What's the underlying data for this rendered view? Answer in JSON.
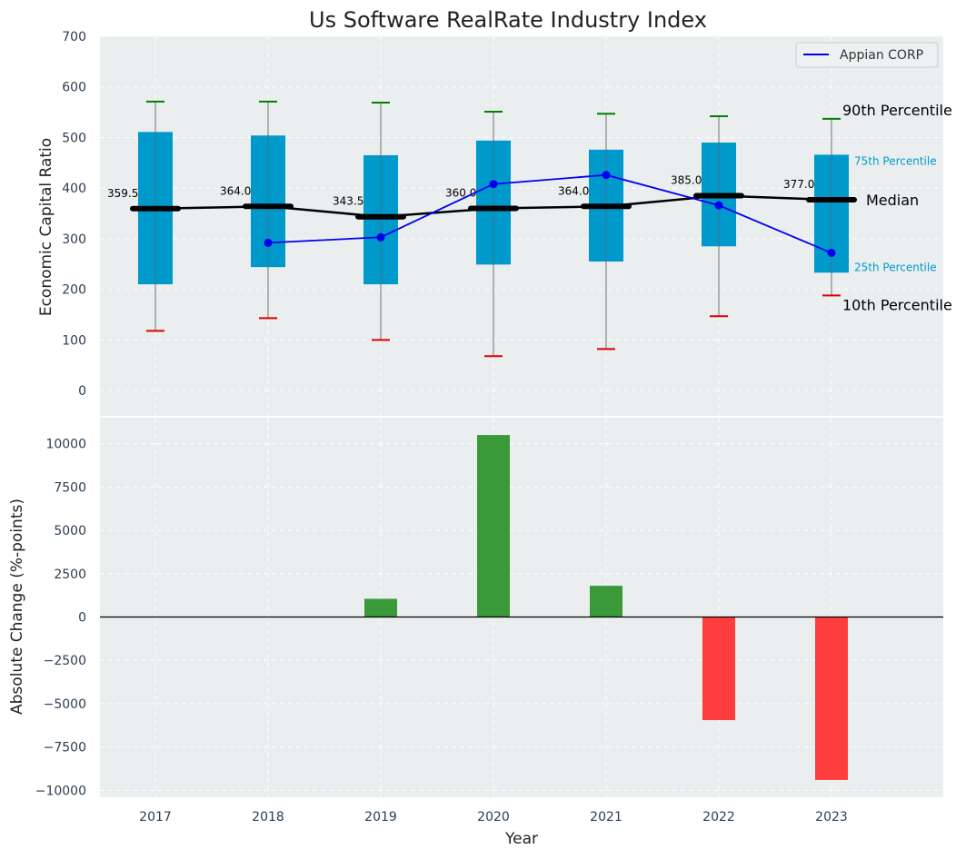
{
  "chart_data": [
    {
      "type": "box",
      "title": "Us Software RealRate Industry Index",
      "xlabel": "",
      "ylabel": "Economic Capital Ratio",
      "ylim": [
        -50,
        700
      ],
      "yticks": [
        0,
        100,
        200,
        300,
        400,
        500,
        600,
        700
      ],
      "grid": true,
      "legend_position": "top-right",
      "categories": [
        "2017",
        "2018",
        "2019",
        "2020",
        "2021",
        "2022",
        "2023"
      ],
      "percentiles": {
        "p10": [
          118,
          143,
          100,
          68,
          82,
          147,
          188
        ],
        "p25": [
          210,
          244,
          210,
          249,
          255,
          285,
          233
        ],
        "median": [
          359.5,
          364.0,
          343.5,
          360.0,
          364.0,
          385.0,
          377.0
        ],
        "p75": [
          511,
          504,
          465,
          494,
          476,
          490,
          466
        ],
        "p90": [
          571,
          571,
          569,
          551,
          547,
          542,
          537
        ]
      },
      "median_labels": [
        "359.5",
        "364.0",
        "343.5",
        "360.0",
        "364.0",
        "385.0",
        "377.0"
      ],
      "series": [
        {
          "name": "Appian CORP",
          "color": "#0000ee",
          "values": [
            null,
            292,
            303,
            408,
            426,
            366,
            272
          ]
        }
      ],
      "annotations": {
        "p90": "90th Percentile",
        "p75": "75th Percentile",
        "median": "Median",
        "p25": "25th Percentile",
        "p10": "10th Percentile"
      },
      "colors": {
        "box": "#0099cc",
        "median": "#000000",
        "p90_cap": "#008000",
        "p10_cap": "#dd0000",
        "whisker": "#888888",
        "panel_bg": "#eaeeef"
      }
    },
    {
      "type": "bar",
      "xlabel": "Year",
      "ylabel": "Absolute Change (%-points)",
      "ylim": [
        -10400,
        11500
      ],
      "yticks": [
        -10000,
        -7500,
        -5000,
        -2500,
        0,
        2500,
        5000,
        7500,
        10000
      ],
      "ytick_labels": [
        "−10000",
        "−7500",
        "−5000",
        "−2500",
        "0",
        "2500",
        "5000",
        "7500",
        "10000"
      ],
      "grid": true,
      "categories": [
        "2017",
        "2018",
        "2019",
        "2020",
        "2021",
        "2022",
        "2023"
      ],
      "values": [
        0,
        0,
        1050,
        10500,
        1800,
        -5950,
        -9400
      ],
      "colors": {
        "positive": "#3a9a3a",
        "negative": "#ff3d3d"
      }
    }
  ]
}
